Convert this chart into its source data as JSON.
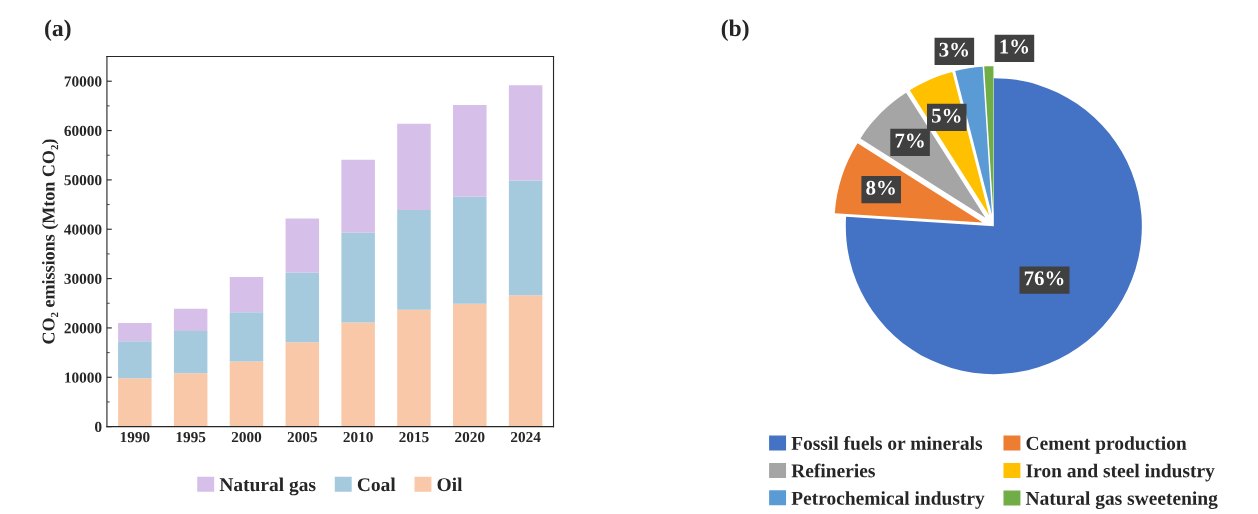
{
  "chart_data": [
    {
      "type": "bar",
      "title": "(a)",
      "ylabel": "CO₂ emissions (Mton CO₂)",
      "categories": [
        "1990",
        "1995",
        "2000",
        "2005",
        "2010",
        "2015",
        "2020",
        "2024"
      ],
      "stacked": true,
      "series": [
        {
          "name": "Oil",
          "color": "#f9c8a8",
          "values": [
            9800,
            10800,
            13200,
            17100,
            21100,
            23700,
            24900,
            26600
          ]
        },
        {
          "name": "Coal",
          "color": "#a5cade",
          "values": [
            7500,
            8600,
            10000,
            14100,
            18200,
            20200,
            21700,
            23300
          ]
        },
        {
          "name": "Natural gas",
          "color": "#d6bfe8",
          "values": [
            3700,
            4500,
            7100,
            11000,
            14800,
            17500,
            18600,
            19300
          ]
        }
      ],
      "ylim": [
        0,
        75000
      ],
      "yticks": [
        0,
        10000,
        20000,
        30000,
        40000,
        50000,
        60000,
        70000
      ],
      "grid": false,
      "legend": "bottom"
    },
    {
      "type": "pie",
      "title": "(b)",
      "categories": [
        "Fossil fuels or minerals",
        "Cement production",
        "Refineries",
        "Iron and steel industry",
        "Petrochemical industry",
        "Natural gas sweetening"
      ],
      "values": [
        76,
        8,
        7,
        5,
        3,
        1
      ],
      "colors": [
        "#4472c4",
        "#ed7d31",
        "#a5a5a5",
        "#ffc000",
        "#5b9bd5",
        "#70ad47"
      ],
      "value_labels": [
        "76%",
        "8%",
        "7%",
        "5%",
        "3%",
        "1%"
      ],
      "legend": "bottom"
    }
  ]
}
